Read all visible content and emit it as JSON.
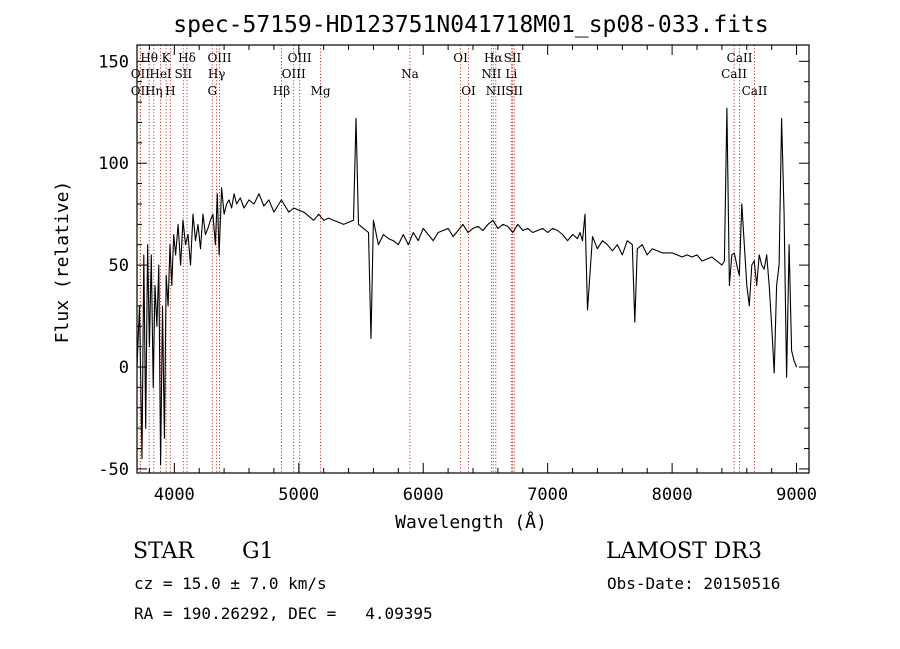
{
  "chart_data": {
    "type": "line",
    "title": "spec-57159-HD123751N041718M01_sp08-033.fits",
    "xlabel": "Wavelength (Å)",
    "ylabel": "Flux (relative)",
    "xlim": [
      3700,
      9100
    ],
    "ylim": [
      -52,
      158
    ],
    "x_ticks": [
      4000,
      5000,
      6000,
      7000,
      8000,
      9000
    ],
    "y_ticks": [
      -50,
      0,
      50,
      100,
      150
    ],
    "grid": false,
    "series": [
      {
        "name": "flux",
        "color": "#000000",
        "x": [
          3700,
          3720,
          3740,
          3755,
          3770,
          3785,
          3800,
          3815,
          3830,
          3845,
          3860,
          3875,
          3890,
          3905,
          3920,
          3935,
          3950,
          3965,
          3980,
          3995,
          4010,
          4030,
          4050,
          4070,
          4090,
          4110,
          4130,
          4150,
          4170,
          4190,
          4210,
          4230,
          4250,
          4270,
          4290,
          4310,
          4330,
          4345,
          4360,
          4380,
          4400,
          4420,
          4440,
          4460,
          4480,
          4500,
          4530,
          4560,
          4600,
          4640,
          4680,
          4720,
          4760,
          4800,
          4840,
          4860,
          4880,
          4920,
          4960,
          5000,
          5040,
          5080,
          5120,
          5160,
          5200,
          5240,
          5280,
          5320,
          5360,
          5400,
          5440,
          5460,
          5480,
          5520,
          5560,
          5580,
          5600,
          5640,
          5680,
          5720,
          5760,
          5800,
          5840,
          5880,
          5920,
          5960,
          6000,
          6040,
          6080,
          6120,
          6160,
          6200,
          6240,
          6280,
          6320,
          6360,
          6400,
          6440,
          6480,
          6520,
          6560,
          6600,
          6640,
          6680,
          6720,
          6760,
          6800,
          6840,
          6880,
          6920,
          6960,
          7000,
          7040,
          7080,
          7120,
          7160,
          7200,
          7240,
          7260,
          7280,
          7300,
          7320,
          7360,
          7400,
          7440,
          7480,
          7520,
          7560,
          7600,
          7640,
          7680,
          7700,
          7720,
          7760,
          7800,
          7840,
          7880,
          7920,
          7960,
          8000,
          8040,
          8080,
          8120,
          8160,
          8200,
          8240,
          8280,
          8320,
          8360,
          8400,
          8420,
          8440,
          8460,
          8480,
          8500,
          8520,
          8540,
          8560,
          8580,
          8600,
          8620,
          8640,
          8660,
          8680,
          8700,
          8720,
          8740,
          8760,
          8780,
          8800,
          8820,
          8840,
          8860,
          8880,
          8900,
          8920,
          8940,
          8960,
          8980,
          9000
        ],
        "values": [
          0,
          30,
          -45,
          55,
          -30,
          60,
          10,
          55,
          -10,
          40,
          20,
          50,
          -48,
          30,
          -35,
          45,
          30,
          60,
          40,
          65,
          55,
          70,
          50,
          72,
          60,
          65,
          50,
          75,
          62,
          70,
          58,
          75,
          65,
          68,
          72,
          75,
          60,
          85,
          55,
          88,
          75,
          80,
          82,
          78,
          85,
          80,
          83,
          78,
          82,
          80,
          85,
          79,
          82,
          76,
          80,
          82,
          80,
          76,
          78,
          77,
          76,
          74,
          72,
          75,
          72,
          73,
          72,
          71,
          70,
          71,
          72,
          122,
          70,
          68,
          66,
          14,
          72,
          60,
          65,
          63,
          62,
          60,
          65,
          60,
          66,
          62,
          68,
          65,
          62,
          66,
          67,
          68,
          64,
          67,
          70,
          66,
          68,
          69,
          67,
          70,
          72,
          68,
          70,
          69,
          66,
          70,
          67,
          68,
          66,
          67,
          68,
          66,
          68,
          67,
          65,
          62,
          65,
          63,
          66,
          62,
          75,
          28,
          64,
          58,
          62,
          60,
          57,
          60,
          55,
          62,
          60,
          22,
          58,
          60,
          55,
          58,
          57,
          56,
          56,
          56,
          55,
          54,
          55,
          54,
          55,
          52,
          53,
          54,
          52,
          50,
          52,
          127,
          40,
          55,
          56,
          50,
          45,
          80,
          60,
          40,
          30,
          50,
          52,
          40,
          55,
          50,
          48,
          55,
          40,
          20,
          -3,
          40,
          50,
          122,
          75,
          -5,
          60,
          8,
          3,
          0
        ]
      }
    ],
    "spectral_lines": [
      {
        "label": "Hθ",
        "x": 3798,
        "row": 1
      },
      {
        "label": "OII",
        "x": 3727,
        "row": 2
      },
      {
        "label": "OII",
        "x": 3727,
        "row": 3
      },
      {
        "label": "Hη",
        "x": 3835,
        "row": 3
      },
      {
        "label": "K",
        "x": 3934,
        "row": 1
      },
      {
        "label": "HeI",
        "x": 3889,
        "row": 2
      },
      {
        "label": "H",
        "x": 3968,
        "row": 3
      },
      {
        "label": "Hδ",
        "x": 4102,
        "row": 1
      },
      {
        "label": "SII",
        "x": 4072,
        "row": 2
      },
      {
        "label": "OIII",
        "x": 4363,
        "row": 1
      },
      {
        "label": "Hγ",
        "x": 4340,
        "row": 2
      },
      {
        "label": "G",
        "x": 4305,
        "row": 3
      },
      {
        "label": "Hβ",
        "x": 4861,
        "row": 3
      },
      {
        "label": "OIII",
        "x": 5007,
        "row": 1
      },
      {
        "label": "OIII",
        "x": 4959,
        "row": 2
      },
      {
        "label": "Mg",
        "x": 5175,
        "row": 3
      },
      {
        "label": "Na",
        "x": 5893,
        "row": 2
      },
      {
        "label": "OI",
        "x": 6300,
        "row": 1
      },
      {
        "label": "OI",
        "x": 6364,
        "row": 3
      },
      {
        "label": "Hα",
        "x": 6563,
        "row": 1
      },
      {
        "label": "NII",
        "x": 6548,
        "row": 2
      },
      {
        "label": "NII",
        "x": 6583,
        "row": 3
      },
      {
        "label": "SII",
        "x": 6717,
        "row": 1
      },
      {
        "label": "Li",
        "x": 6708,
        "row": 2
      },
      {
        "label": "SII",
        "x": 6731,
        "row": 3
      },
      {
        "label": "CaII",
        "x": 8542,
        "row": 1
      },
      {
        "label": "CaII",
        "x": 8498,
        "row": 2
      },
      {
        "label": "CaII",
        "x": 8662,
        "row": 3
      }
    ]
  },
  "info": {
    "object_class": "STAR",
    "subclass": "G1",
    "survey": "LAMOST DR3",
    "redshift": "cz = 15.0 ± 7.0 km/s",
    "obs_date": "Obs-Date: 20150516",
    "coords": "RA = 190.26292, DEC =   4.09395"
  },
  "colors": {
    "line": "#000000",
    "marker": "#c0392b",
    "axes": "#000000"
  }
}
